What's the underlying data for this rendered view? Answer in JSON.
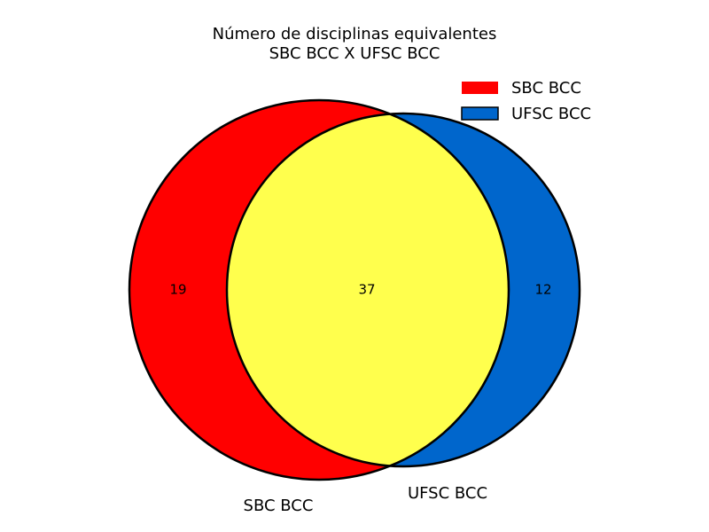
{
  "title": {
    "line1": "Número de disciplinas equivalentes",
    "line2": "SBC BCC X UFSC BCC"
  },
  "sets": [
    {
      "name": "SBC BCC",
      "color": "#ff0000"
    },
    {
      "name": "UFSC BCC",
      "color": "#0066cc"
    }
  ],
  "intersection_color": "#ffff4d",
  "outline_color": "#000000",
  "regions": {
    "only_a": "19",
    "both": "37",
    "only_b": "12"
  },
  "legend": {
    "position": "top-right",
    "items": [
      {
        "label": "SBC BCC",
        "color": "#ff0000"
      },
      {
        "label": "UFSC BCC",
        "color": "#0066cc"
      }
    ]
  }
}
